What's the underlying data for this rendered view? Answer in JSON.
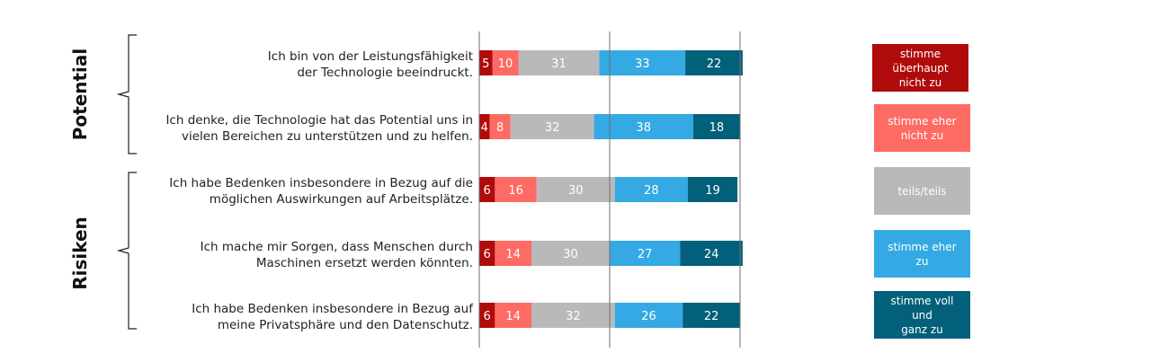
{
  "chart_data": {
    "type": "bar",
    "orientation": "horizontal",
    "stacked": true,
    "scale": "percent",
    "xlim": [
      0,
      100
    ],
    "grid": "vertical lines at 0, 50, 100",
    "legend_position": "right",
    "groups": [
      {
        "label": "Potential",
        "rows": [
          0,
          1
        ]
      },
      {
        "label": "Risiken",
        "rows": [
          2,
          3,
          4
        ]
      }
    ],
    "categories": [
      [
        "Ich bin von der Leistungsfähigkeit",
        "der Technologie beeindruckt."
      ],
      [
        "Ich denke, die Technologie hat das Potential uns in",
        "vielen Bereichen zu unterstützen und zu helfen."
      ],
      [
        "Ich habe Bedenken insbesondere in Bezug auf die",
        "möglichen Auswirkungen auf Arbeitsplätze."
      ],
      [
        "Ich mache mir Sorgen, dass Menschen durch",
        "Maschinen ersetzt werden könnten."
      ],
      [
        "Ich habe Bedenken insbesondere in Bezug auf",
        "meine Privatsphäre und den Datenschutz."
      ]
    ],
    "series": [
      {
        "name": "stimme überhaupt nicht zu",
        "legend_lines": [
          "stimme",
          "überhaupt",
          "nicht zu"
        ],
        "color": "#b00b0b",
        "values": [
          5,
          4,
          6,
          6,
          6
        ]
      },
      {
        "name": "stimme eher nicht zu",
        "legend_lines": [
          "stimme eher",
          "nicht zu"
        ],
        "color": "#fd6b64",
        "values": [
          10,
          8,
          16,
          14,
          14
        ]
      },
      {
        "name": "teils/teils",
        "legend_lines": [
          "teils/teils"
        ],
        "color": "#b9b9b9",
        "values": [
          31,
          32,
          30,
          30,
          32
        ]
      },
      {
        "name": "stimme eher zu",
        "legend_lines": [
          "stimme eher",
          "zu"
        ],
        "color": "#34a9e3",
        "values": [
          33,
          38,
          28,
          27,
          26
        ]
      },
      {
        "name": "stimme voll und ganz zu",
        "legend_lines": [
          "stimme voll",
          "und",
          "ganz zu"
        ],
        "color": "#02607a",
        "values": [
          22,
          18,
          19,
          24,
          22
        ]
      }
    ]
  }
}
